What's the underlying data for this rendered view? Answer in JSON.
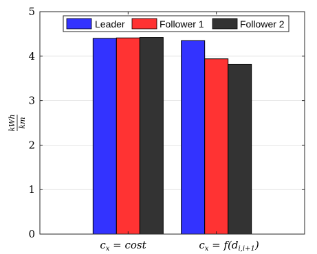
{
  "chart_data": {
    "type": "bar",
    "categories": [
      "c_x = cost",
      "c_x = f(d_{i,i+1})"
    ],
    "category_display": [
      {
        "main": "c",
        "sub": "x",
        "rest": " = cost"
      },
      {
        "main": "c",
        "sub": "x",
        "rest": " = f(d",
        "sub2": "i,i+1",
        "tail": ")"
      }
    ],
    "series": [
      {
        "name": "Leader",
        "values": [
          4.4,
          4.35
        ],
        "color": "#3333ff"
      },
      {
        "name": "Follower 1",
        "values": [
          4.41,
          3.94
        ],
        "color": "#ff3333"
      },
      {
        "name": "Follower 2",
        "values": [
          4.42,
          3.82
        ],
        "color": "#333333"
      }
    ],
    "ylabel": {
      "numerator": "kWh",
      "denominator": "km"
    },
    "ylim": [
      0,
      5
    ],
    "yticks": [
      "0",
      "1",
      "2",
      "3",
      "4",
      "5"
    ],
    "grid": true,
    "legend_position": "top-center, horizontal"
  }
}
